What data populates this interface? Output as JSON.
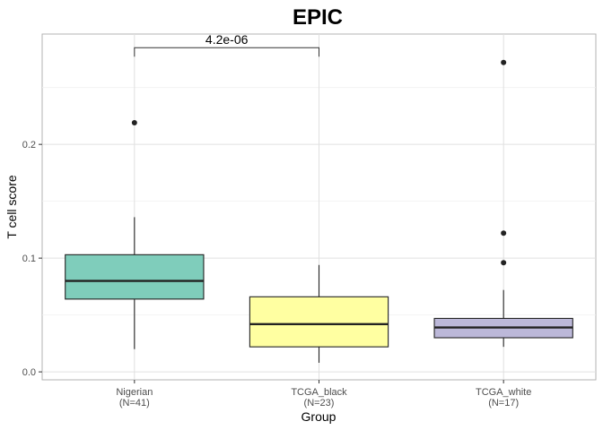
{
  "chart_data": {
    "type": "box",
    "title": "EPIC",
    "xlabel": "Group",
    "ylabel": "T cell score",
    "ylim": [
      -0.007,
      0.297
    ],
    "yticks": [
      0.0,
      0.1,
      0.2
    ],
    "ytick_labels": [
      "0.0",
      "0.1",
      "0.2"
    ],
    "grid": true,
    "categories": [
      {
        "name": "Nigerian",
        "n_label": "(N=41)"
      },
      {
        "name": "TCGA_black",
        "n_label": "(N=23)"
      },
      {
        "name": "TCGA_white",
        "n_label": "(N=17)"
      }
    ],
    "series": [
      {
        "whisker_low": 0.02,
        "q1": 0.064,
        "median": 0.08,
        "q3": 0.103,
        "whisker_high": 0.136,
        "outliers": [
          0.219
        ],
        "color": "#7fcdbb"
      },
      {
        "whisker_low": 0.008,
        "q1": 0.022,
        "median": 0.042,
        "q3": 0.066,
        "whisker_high": 0.094,
        "outliers": [],
        "color": "#ffffa1"
      },
      {
        "whisker_low": 0.022,
        "q1": 0.03,
        "median": 0.039,
        "q3": 0.047,
        "whisker_high": 0.072,
        "outliers": [
          0.096,
          0.122,
          0.272
        ],
        "color": "#bcb8d9"
      }
    ],
    "annotations": [
      {
        "text": "4.2e-06",
        "from": 0,
        "to": 1,
        "y": 0.285
      }
    ]
  }
}
